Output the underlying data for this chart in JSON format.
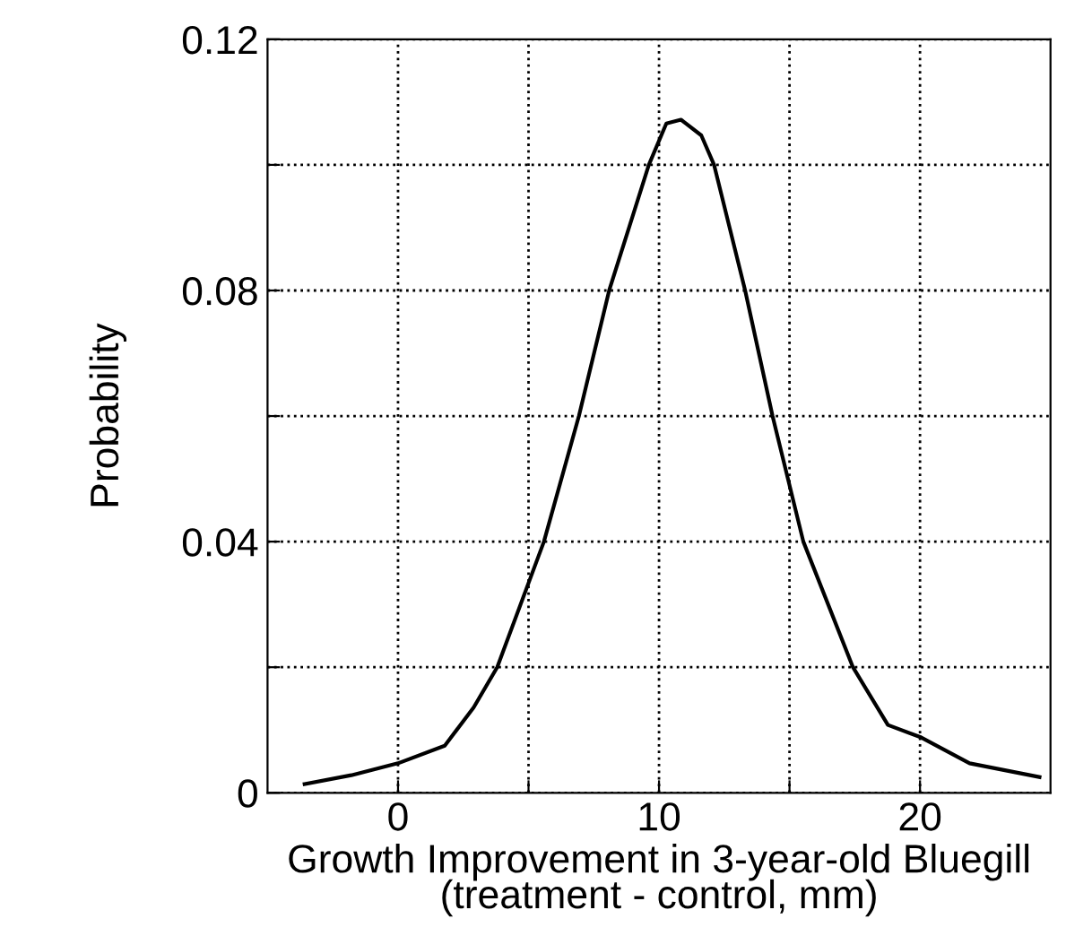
{
  "chart_data": {
    "type": "line",
    "xlabel": "Growth Improvement in 3-year-old Bluegill\n(treatment - control, mm)",
    "ylabel": "Probability",
    "x": [
      -3.58,
      -1.79,
      0,
      1.79,
      2.9,
      3.8,
      5.59,
      6.93,
      8.09,
      9.61,
      10.28,
      10.84,
      11.62,
      12.11,
      13.3,
      14.35,
      15.53,
      17.43,
      18.77,
      20,
      21.9,
      24.58
    ],
    "series": [
      {
        "color": "#000000",
        "values": [
          0.0014,
          0.0028,
          0.0047,
          0.0075,
          0.0136,
          0.02,
          0.04,
          0.06,
          0.08,
          0.1,
          0.1066,
          0.1072,
          0.1047,
          0.1,
          0.08,
          0.06,
          0.04,
          0.02,
          0.0108,
          0.0089,
          0.0047,
          0.0025
        ]
      }
    ],
    "xlim": [
      -5,
      25
    ],
    "xticks": [
      0,
      {
        "value": 5,
        "label": null
      },
      10,
      {
        "value": 15,
        "label": null
      },
      20
    ],
    "ylim": [
      0,
      0.12
    ],
    "yticks": [
      0,
      {
        "value": 0.02,
        "label": null
      },
      0.04,
      {
        "value": 0.06,
        "label": null
      },
      0.08,
      {
        "value": 0.1,
        "label": null
      },
      0.12
    ],
    "grid": true,
    "marker": "none",
    "line_style": "solid"
  }
}
